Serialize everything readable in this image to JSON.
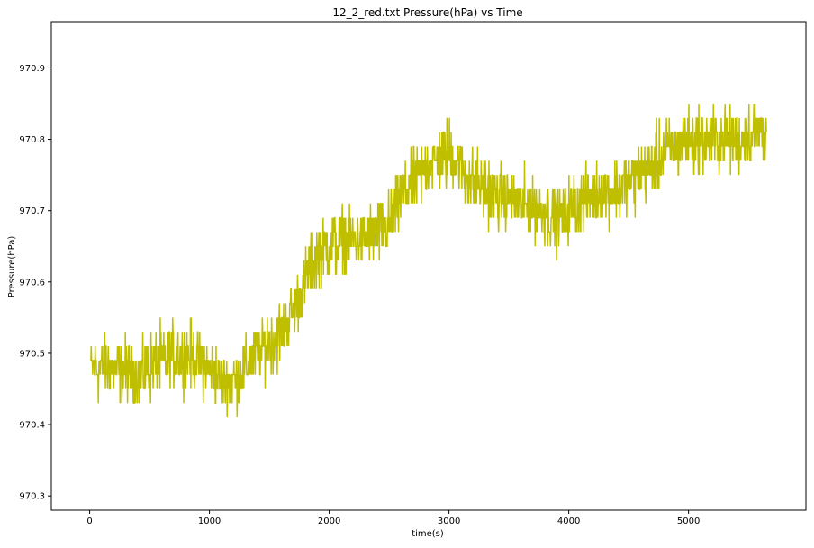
{
  "chart_data": {
    "type": "line",
    "title": "12_2_red.txt  Pressure(hPa) vs Time",
    "xlabel": "time(s)",
    "ylabel": "Pressure(hPa)",
    "xlim": [
      -320,
      5980
    ],
    "ylim": [
      970.28,
      970.965
    ],
    "x_ticks": [
      0,
      1000,
      2000,
      3000,
      4000,
      5000
    ],
    "x_tick_labels": [
      "0",
      "1000",
      "2000",
      "3000",
      "4000",
      "5000"
    ],
    "y_ticks": [
      970.3,
      970.4,
      970.5,
      970.6,
      970.7,
      970.8,
      970.9
    ],
    "y_tick_labels": [
      "970.3",
      "970.4",
      "970.5",
      "970.6",
      "970.7",
      "970.8",
      "970.9"
    ],
    "grid": false,
    "legend": "none",
    "colors": {
      "line": "#bfbf00",
      "axes": "#000000",
      "background": "#ffffff"
    },
    "series": [
      {
        "x_start": 10,
        "x_end": 5650,
        "trend": [
          [
            10,
            970.47
          ],
          [
            200,
            970.47
          ],
          [
            400,
            970.46
          ],
          [
            600,
            970.48
          ],
          [
            800,
            970.49
          ],
          [
            1000,
            970.47
          ],
          [
            1100,
            970.45
          ],
          [
            1200,
            970.45
          ],
          [
            1400,
            970.49
          ],
          [
            1600,
            970.52
          ],
          [
            1700,
            970.55
          ],
          [
            1800,
            970.59
          ],
          [
            1900,
            970.63
          ],
          [
            2000,
            970.64
          ],
          [
            2100,
            970.65
          ],
          [
            2300,
            970.65
          ],
          [
            2500,
            970.67
          ],
          [
            2600,
            970.71
          ],
          [
            2700,
            970.73
          ],
          [
            2800,
            970.75
          ],
          [
            2900,
            970.76
          ],
          [
            3000,
            970.77
          ],
          [
            3200,
            970.73
          ],
          [
            3400,
            970.71
          ],
          [
            3600,
            970.7
          ],
          [
            3800,
            970.69
          ],
          [
            3900,
            970.68
          ],
          [
            4000,
            970.69
          ],
          [
            4200,
            970.71
          ],
          [
            4400,
            970.72
          ],
          [
            4600,
            970.74
          ],
          [
            4800,
            970.77
          ],
          [
            5000,
            970.79
          ],
          [
            5200,
            970.79
          ],
          [
            5400,
            970.79
          ],
          [
            5600,
            970.8
          ],
          [
            5650,
            970.8
          ]
        ],
        "noise_amplitude": 0.065,
        "samples": 1900
      }
    ]
  }
}
